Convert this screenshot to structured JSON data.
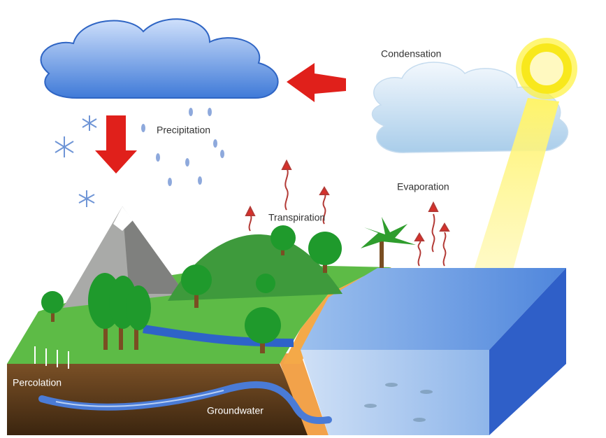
{
  "labels": {
    "condensation": "Condensation",
    "precipitation": "Precipitation",
    "evaporation": "Evaporation",
    "transpiration": "Transpiration",
    "percolation": "Percolation",
    "groundwater": "Groundwater"
  }
}
